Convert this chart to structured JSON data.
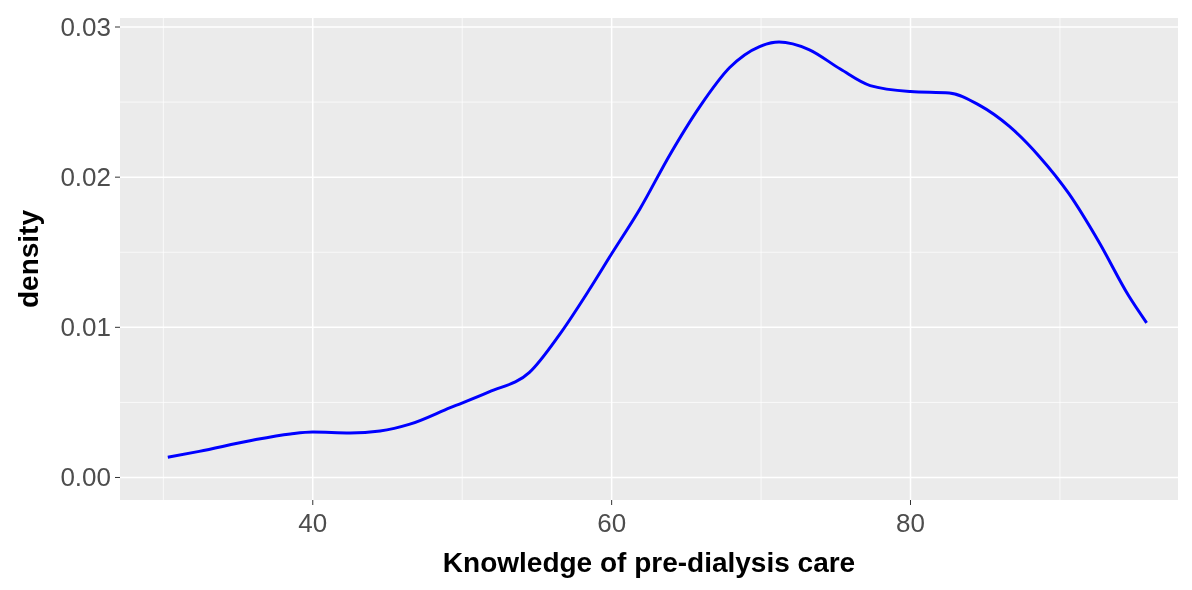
{
  "chart_data": {
    "type": "line",
    "xlabel": "Knowledge of pre-dialysis care",
    "ylabel": "density",
    "xlim": [
      27.1,
      97.9
    ],
    "ylim": [
      -0.0015,
      0.0306
    ],
    "xticks": [
      40,
      60,
      80
    ],
    "yticks": [
      {
        "value": 0,
        "label": "0.00"
      },
      {
        "value": 0.01,
        "label": "0.01"
      },
      {
        "value": 0.02,
        "label": "0.02"
      },
      {
        "value": 0.03,
        "label": "0.03"
      }
    ],
    "grid": true,
    "line_style": "solid",
    "marker": "none",
    "x": [
      30.3,
      32.4,
      35.8,
      38.5,
      40,
      42.5,
      44.5,
      46.5,
      49.2,
      51.8,
      54.5,
      56.5,
      58.5,
      60,
      61.9,
      63.9,
      65.9,
      67.9,
      69.9,
      71.2,
      73.2,
      75.3,
      77.3,
      80,
      82.6,
      84.6,
      86.6,
      88.6,
      90.6,
      92.6,
      94.6,
      95.8
    ],
    "series": [
      {
        "color": "#0000ff",
        "values": [
          0.00135,
          0.00174,
          0.00245,
          0.0029,
          0.00303,
          0.00297,
          0.0031,
          0.00355,
          0.00465,
          0.0057,
          0.007,
          0.0095,
          0.0125,
          0.0149,
          0.0179,
          0.0215,
          0.0247,
          0.0273,
          0.0287,
          0.029,
          0.0285,
          0.0272,
          0.0261,
          0.0257,
          0.0256,
          0.0248,
          0.0234,
          0.0214,
          0.0189,
          0.0157,
          0.0121,
          0.0103
        ]
      }
    ]
  }
}
